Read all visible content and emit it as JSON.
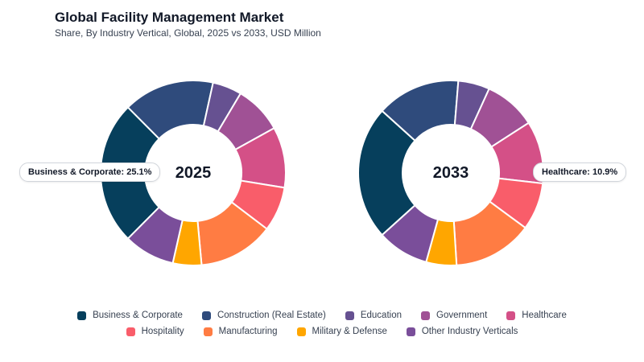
{
  "header": {
    "title": "Global Facility Management Market",
    "subtitle": "Share, By Industry Vertical, Global, 2025 vs 2033, USD Million"
  },
  "callouts": {
    "left": "Business & Corporate: 25.1%",
    "right": "Healthcare: 10.9%"
  },
  "chart_data": {
    "type": "donut",
    "categories": [
      "Business & Corporate",
      "Construction (Real Estate)",
      "Education",
      "Government",
      "Healthcare",
      "Hospitality",
      "Manufacturing",
      "Military & Defense",
      "Other Industry Verticals"
    ],
    "colors": [
      "#063f5c",
      "#2f4b7c",
      "#665191",
      "#a05195",
      "#d45087",
      "#f95d6a",
      "#ff7c43",
      "#ffa600",
      "#7a4e9a"
    ],
    "series": [
      {
        "name": "2025",
        "values": [
          25.1,
          15.9,
          5.1,
          8.4,
          10.6,
          7.8,
          13.2,
          5.0,
          8.9
        ]
      },
      {
        "name": "2033",
        "values": [
          23.4,
          14.6,
          5.5,
          9.1,
          10.9,
          8.3,
          13.9,
          5.3,
          9.0
        ]
      }
    ]
  },
  "legend": {
    "items": [
      {
        "label": "Business & Corporate",
        "color": "#063f5c"
      },
      {
        "label": "Construction (Real Estate)",
        "color": "#2f4b7c"
      },
      {
        "label": "Education",
        "color": "#665191"
      },
      {
        "label": "Government",
        "color": "#a05195"
      },
      {
        "label": "Healthcare",
        "color": "#d45087"
      },
      {
        "label": "Hospitality",
        "color": "#f95d6a"
      },
      {
        "label": "Manufacturing",
        "color": "#ff7c43"
      },
      {
        "label": "Military & Defense",
        "color": "#ffa600"
      },
      {
        "label": "Other Industry Verticals",
        "color": "#7a4e9a"
      }
    ]
  }
}
